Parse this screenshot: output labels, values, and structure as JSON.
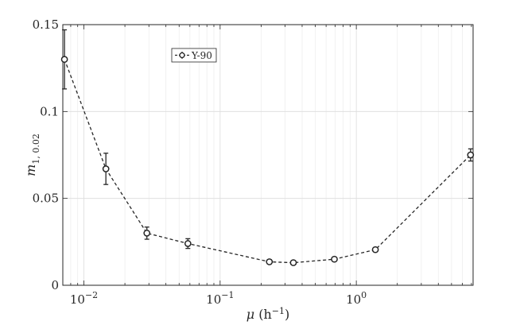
{
  "chart_data": {
    "type": "scatter",
    "xscale": "log",
    "xlim": [
      0.007,
      7.2
    ],
    "ylim": [
      0,
      0.15
    ],
    "grid": true,
    "legend_position": "top-left",
    "xlabel": "μ (h⁻¹)",
    "ylabel": "m₁, ₀.₀₂",
    "xticks": [
      {
        "value": 0.01,
        "base": "10",
        "exp": "−2"
      },
      {
        "value": 0.1,
        "base": "10",
        "exp": "−1"
      },
      {
        "value": 1,
        "base": "10",
        "exp": "0"
      }
    ],
    "yticks": [
      {
        "value": 0,
        "label": "0"
      },
      {
        "value": 0.05,
        "label": "0.05"
      },
      {
        "value": 0.1,
        "label": "0.1"
      },
      {
        "value": 0.15,
        "label": "0.15"
      }
    ],
    "series": [
      {
        "name": "Y-90",
        "line": "dashed",
        "marker": "open-circle",
        "color": "#262626",
        "points": [
          {
            "x": 0.0072,
            "y": 0.13,
            "err": 0.017
          },
          {
            "x": 0.0145,
            "y": 0.067,
            "err": 0.009
          },
          {
            "x": 0.029,
            "y": 0.03,
            "err": 0.0035
          },
          {
            "x": 0.058,
            "y": 0.024,
            "err": 0.0028
          },
          {
            "x": 0.23,
            "y": 0.0135,
            "err": 0.0012
          },
          {
            "x": 0.345,
            "y": 0.013,
            "err": 0.0012
          },
          {
            "x": 0.69,
            "y": 0.015,
            "err": 0.0012
          },
          {
            "x": 1.38,
            "y": 0.0205,
            "err": 0.0012
          },
          {
            "x": 6.9,
            "y": 0.075,
            "err": 0.0035
          }
        ]
      }
    ]
  }
}
